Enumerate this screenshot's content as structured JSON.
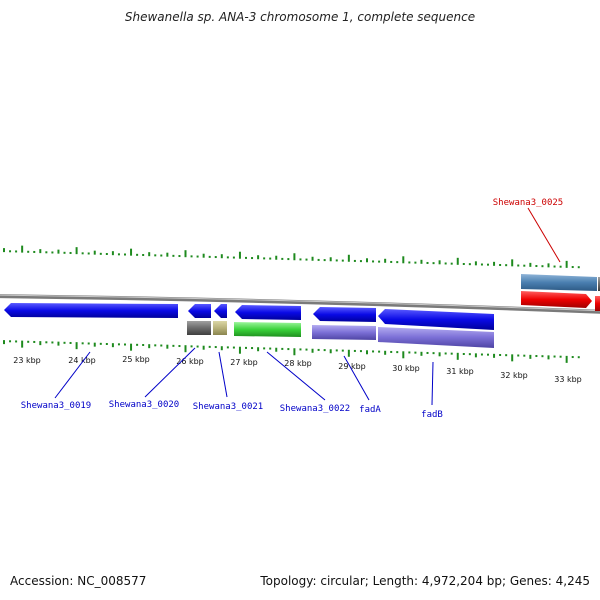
{
  "title": "Shewanella sp. ANA-3 chromosome 1, complete sequence",
  "footer": {
    "accession": "Accession: NC_008577",
    "topology": "Topology: circular; Length: 4,972,204 bp; Genes: 4,245"
  },
  "scale_labels": [
    "23 kbp",
    "24 kbp",
    "25 kbp",
    "26 kbp",
    "27 kbp",
    "28 kbp",
    "29 kbp",
    "30 kbp",
    "31 kbp",
    "32 kbp",
    "33 kbp"
  ],
  "gene_labels": [
    {
      "text": "Shewana3_0019",
      "color": "#0000c8"
    },
    {
      "text": "Shewana3_0020",
      "color": "#0000c8"
    },
    {
      "text": "Shewana3_0021",
      "color": "#0000c8"
    },
    {
      "text": "Shewana3_0022",
      "color": "#0000c8"
    },
    {
      "text": "fadA",
      "color": "#0000c8"
    },
    {
      "text": "fadB",
      "color": "#0000c8"
    },
    {
      "text": "Shewana3_0025",
      "color": "#cc0000"
    }
  ],
  "colors": {
    "backbone": "#7a7a7a",
    "ticks": "#1e8a1e",
    "cds_blue": "#0a0ae6",
    "cds_red": "#ee0000",
    "cds_steel": "#4a7fb0",
    "cds_green": "#3ad23a",
    "cds_purple": "#7b6fd6",
    "cds_gray": "#6b6b6b",
    "cds_khaki": "#b8b27a"
  }
}
